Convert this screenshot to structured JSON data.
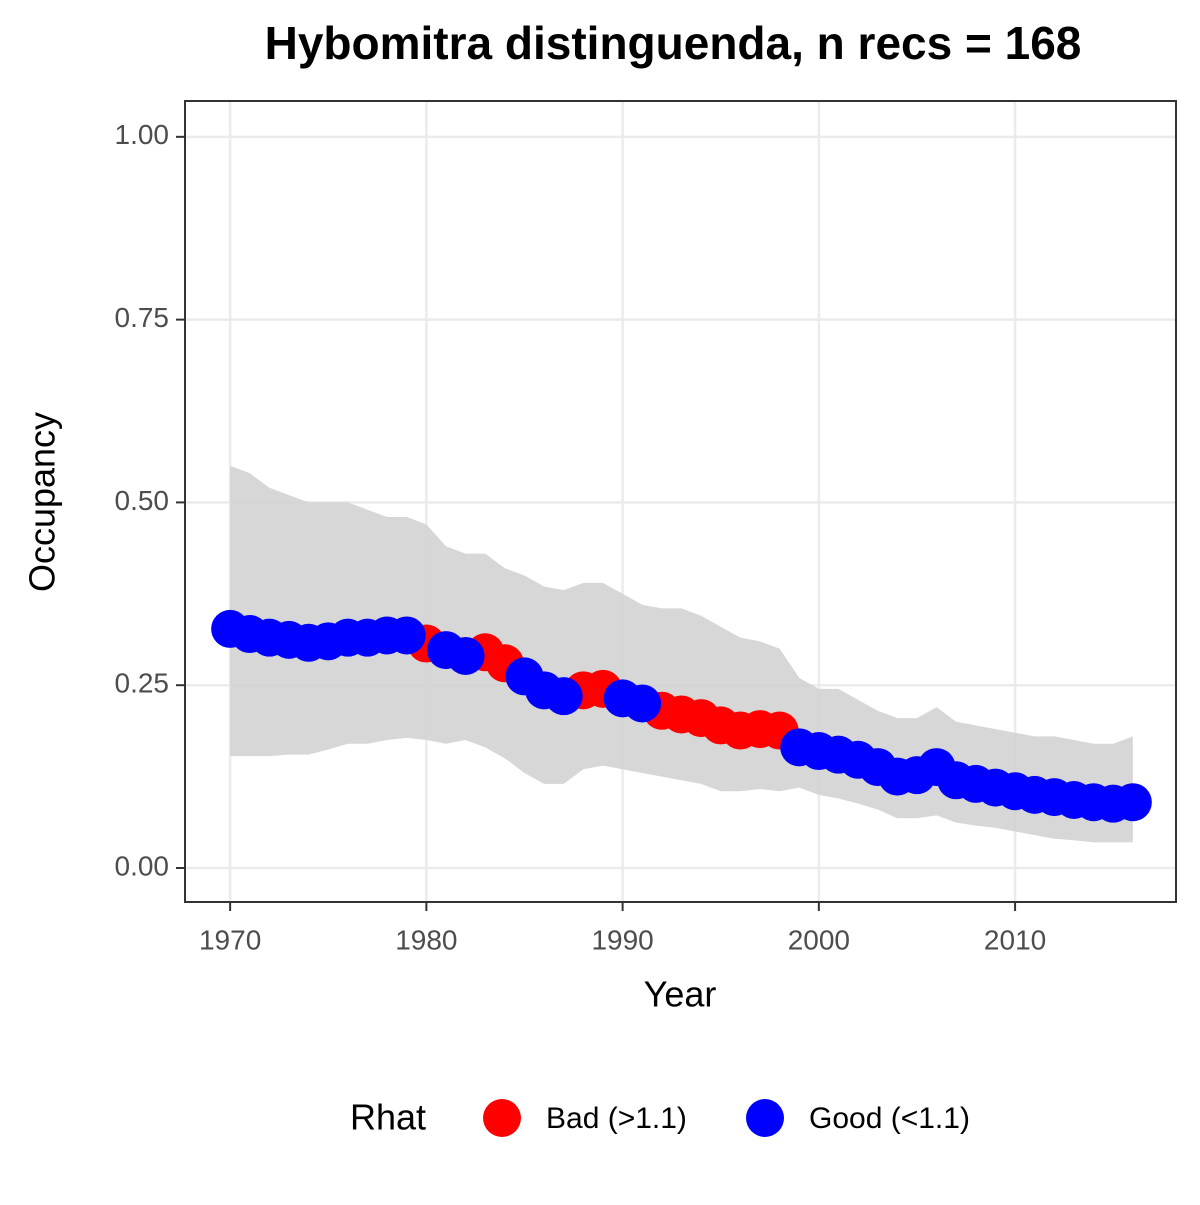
{
  "chart_data": {
    "type": "scatter",
    "title": "Hybomitra distinguenda, n recs = 168",
    "x_label": "Year",
    "y_label": "Occupancy",
    "legend_title": "Rhat",
    "legend_position": "bottom",
    "grid": true,
    "ribbon_color": "#d3d3d3",
    "x": [
      1970,
      1971,
      1972,
      1973,
      1974,
      1975,
      1976,
      1977,
      1978,
      1979,
      1980,
      1981,
      1982,
      1983,
      1984,
      1985,
      1986,
      1987,
      1988,
      1989,
      1990,
      1991,
      1992,
      1993,
      1994,
      1995,
      1996,
      1997,
      1998,
      1999,
      2000,
      2001,
      2002,
      2003,
      2004,
      2005,
      2006,
      2007,
      2008,
      2009,
      2010,
      2011,
      2012,
      2013,
      2014,
      2015,
      2016
    ],
    "upper": [
      0.55,
      0.54,
      0.52,
      0.51,
      0.5,
      0.5,
      0.5,
      0.49,
      0.48,
      0.48,
      0.47,
      0.44,
      0.43,
      0.43,
      0.41,
      0.4,
      0.385,
      0.38,
      0.39,
      0.39,
      0.375,
      0.36,
      0.355,
      0.355,
      0.345,
      0.33,
      0.315,
      0.31,
      0.3,
      0.26,
      0.245,
      0.245,
      0.23,
      0.215,
      0.205,
      0.205,
      0.22,
      0.2,
      0.195,
      0.19,
      0.185,
      0.18,
      0.18,
      0.175,
      0.17,
      0.17,
      0.18
    ],
    "lower": [
      0.153,
      0.153,
      0.153,
      0.155,
      0.155,
      0.162,
      0.17,
      0.17,
      0.175,
      0.178,
      0.175,
      0.17,
      0.175,
      0.165,
      0.15,
      0.13,
      0.115,
      0.115,
      0.135,
      0.14,
      0.135,
      0.13,
      0.125,
      0.12,
      0.115,
      0.105,
      0.105,
      0.108,
      0.105,
      0.11,
      0.1,
      0.095,
      0.088,
      0.08,
      0.068,
      0.068,
      0.072,
      0.062,
      0.058,
      0.055,
      0.05,
      0.045,
      0.04,
      0.038,
      0.035,
      0.035,
      0.035
    ],
    "series": [
      {
        "name": "Bad (>1.1)",
        "color": "#ff0000",
        "values": [
          null,
          null,
          null,
          null,
          null,
          null,
          null,
          null,
          null,
          null,
          0.307,
          null,
          null,
          0.295,
          0.28,
          null,
          null,
          null,
          0.243,
          0.245,
          null,
          null,
          0.215,
          0.21,
          0.205,
          0.195,
          0.188,
          0.19,
          0.188,
          null,
          null,
          null,
          null,
          null,
          null,
          null,
          null,
          null,
          null,
          null,
          null,
          null,
          null,
          null,
          null,
          null,
          null
        ]
      },
      {
        "name": "Good (<1.1)",
        "color": "#0000ff",
        "values": [
          0.327,
          0.32,
          0.315,
          0.312,
          0.308,
          0.31,
          0.315,
          0.315,
          0.318,
          0.318,
          null,
          0.298,
          0.29,
          null,
          null,
          0.262,
          0.243,
          0.235,
          null,
          null,
          0.232,
          0.225,
          null,
          null,
          null,
          null,
          null,
          null,
          null,
          0.165,
          0.16,
          0.155,
          0.148,
          0.138,
          0.125,
          0.127,
          0.138,
          0.12,
          0.115,
          0.11,
          0.105,
          0.1,
          0.097,
          0.093,
          0.09,
          0.088,
          0.09
        ]
      }
    ],
    "xlim": [
      1967.7,
      2018.2
    ],
    "xticks": [
      1970,
      1980,
      1990,
      2000,
      2010
    ],
    "ylim": [
      -0.0465,
      1.049
    ],
    "yticks": [
      {
        "value": 0,
        "label": "0.00"
      },
      {
        "value": 0.25,
        "label": "0.25"
      },
      {
        "value": 0.5,
        "label": "0.50"
      },
      {
        "value": 0.75,
        "label": "0.75"
      },
      {
        "value": 1,
        "label": "1.00"
      }
    ]
  }
}
